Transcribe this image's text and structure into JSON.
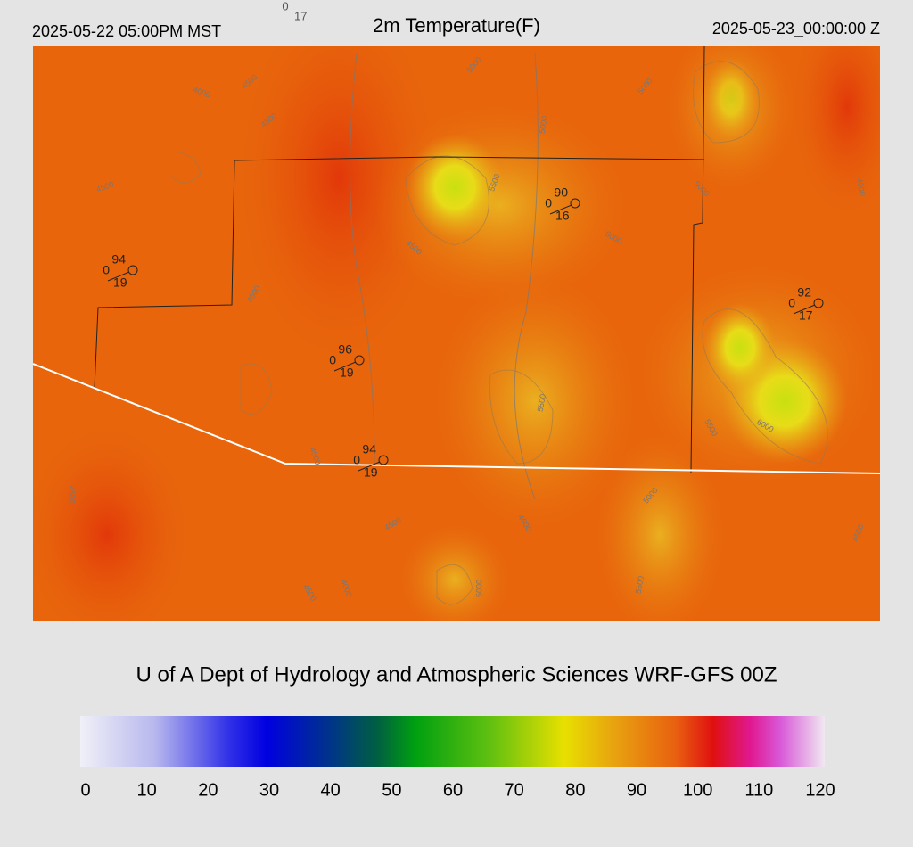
{
  "header": {
    "valid_local": "2025-05-22 05:00PM MST",
    "title": "2m Temperature(F)",
    "valid_utc": "2025-05-23_00:00:00 Z",
    "station_key": {
      "dewpoint": "0",
      "wind": "17"
    }
  },
  "stations": [
    {
      "temp": "94",
      "dewpoint": "0",
      "wind": "19"
    },
    {
      "temp": "96",
      "dewpoint": "0",
      "wind": "19"
    },
    {
      "temp": "94",
      "dewpoint": "0",
      "wind": "19"
    },
    {
      "temp": "90",
      "dewpoint": "0",
      "wind": "16"
    },
    {
      "temp": "92",
      "dewpoint": "0",
      "wind": "17"
    }
  ],
  "contour_labels": [
    "4000",
    "4500",
    "4500",
    "5000",
    "4500",
    "5000",
    "5500",
    "5000",
    "5000",
    "4500",
    "4500",
    "5000",
    "4500",
    "5500",
    "6000",
    "5500",
    "4500",
    "5000",
    "4500",
    "4500",
    "4000",
    "5000",
    "5500",
    "4500",
    "4500",
    "4000"
  ],
  "footer": "U of A Dept of Hydrology and Atmospheric Sciences WRF-GFS 00Z",
  "colorbar": {
    "range": [
      0,
      120
    ],
    "ticks": [
      0,
      10,
      20,
      30,
      40,
      50,
      60,
      70,
      80,
      90,
      100,
      110,
      120
    ]
  }
}
